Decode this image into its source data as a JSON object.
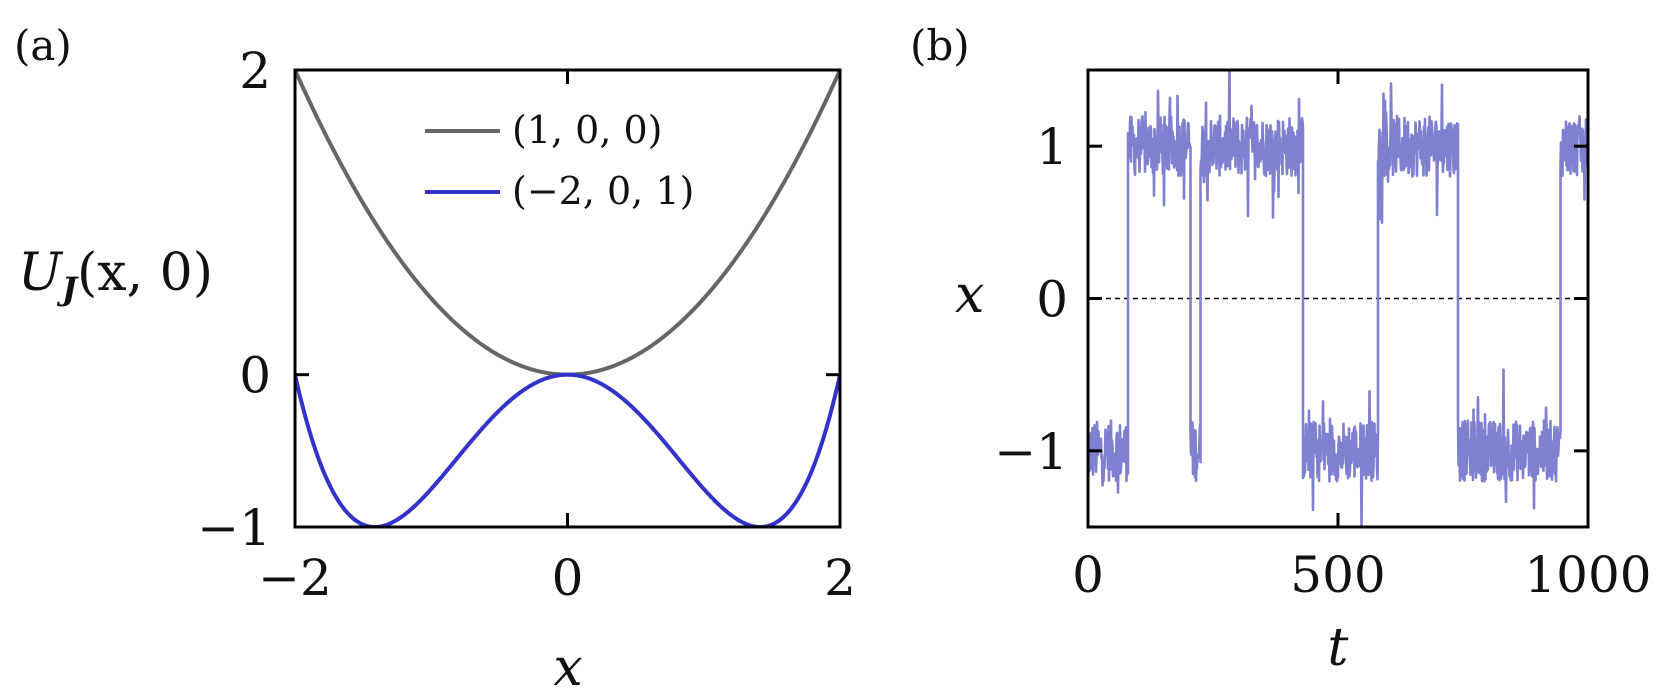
{
  "chart_data": [
    {
      "panel": "(a)",
      "type": "line",
      "xlabel": "x",
      "ylabel": "U",
      "ylabel_sub": "J",
      "ylabel_args": "(x, 0)",
      "xlim": [
        -2,
        2
      ],
      "ylim": [
        -1,
        2
      ],
      "xticks": [
        -2,
        0,
        2
      ],
      "xtick_labels": [
        "−2",
        "0",
        "2"
      ],
      "yticks": [
        -1,
        0,
        2
      ],
      "ytick_labels": [
        "−1",
        "0",
        "2"
      ],
      "legend_position": "top-right",
      "series": [
        {
          "name": "(1, 0, 0)",
          "color": "#666666",
          "coeffs": [
            1,
            0,
            0
          ]
        },
        {
          "name": "(−2, 0, 1)",
          "color": "#3333cc",
          "coeffs": [
            -2,
            0,
            1
          ]
        }
      ]
    },
    {
      "panel": "(b)",
      "type": "line",
      "xlabel": "t",
      "ylabel": "x",
      "xlim": [
        0,
        1000
      ],
      "ylim": [
        -1.5,
        1.5
      ],
      "xticks": [
        0,
        500,
        1000
      ],
      "xtick_labels": [
        "0",
        "500",
        "1000"
      ],
      "yticks": [
        -1,
        0,
        1
      ],
      "ytick_labels": [
        "−1",
        "0",
        "1"
      ],
      "reference_line": {
        "y": 0,
        "style": "dashed"
      },
      "series": [
        {
          "color": "#8080d0",
          "segments": [
            {
              "t0": 0,
              "t1": 80,
              "level": -1
            },
            {
              "t0": 80,
              "t1": 205,
              "level": 1
            },
            {
              "t0": 205,
              "t1": 225,
              "level": -1
            },
            {
              "t0": 225,
              "t1": 430,
              "level": 1
            },
            {
              "t0": 430,
              "t1": 580,
              "level": -1
            },
            {
              "t0": 580,
              "t1": 740,
              "level": 1
            },
            {
              "t0": 740,
              "t1": 945,
              "level": -1
            },
            {
              "t0": 945,
              "t1": 1000,
              "level": 1
            }
          ],
          "noise_amplitude": 0.2
        }
      ]
    }
  ]
}
